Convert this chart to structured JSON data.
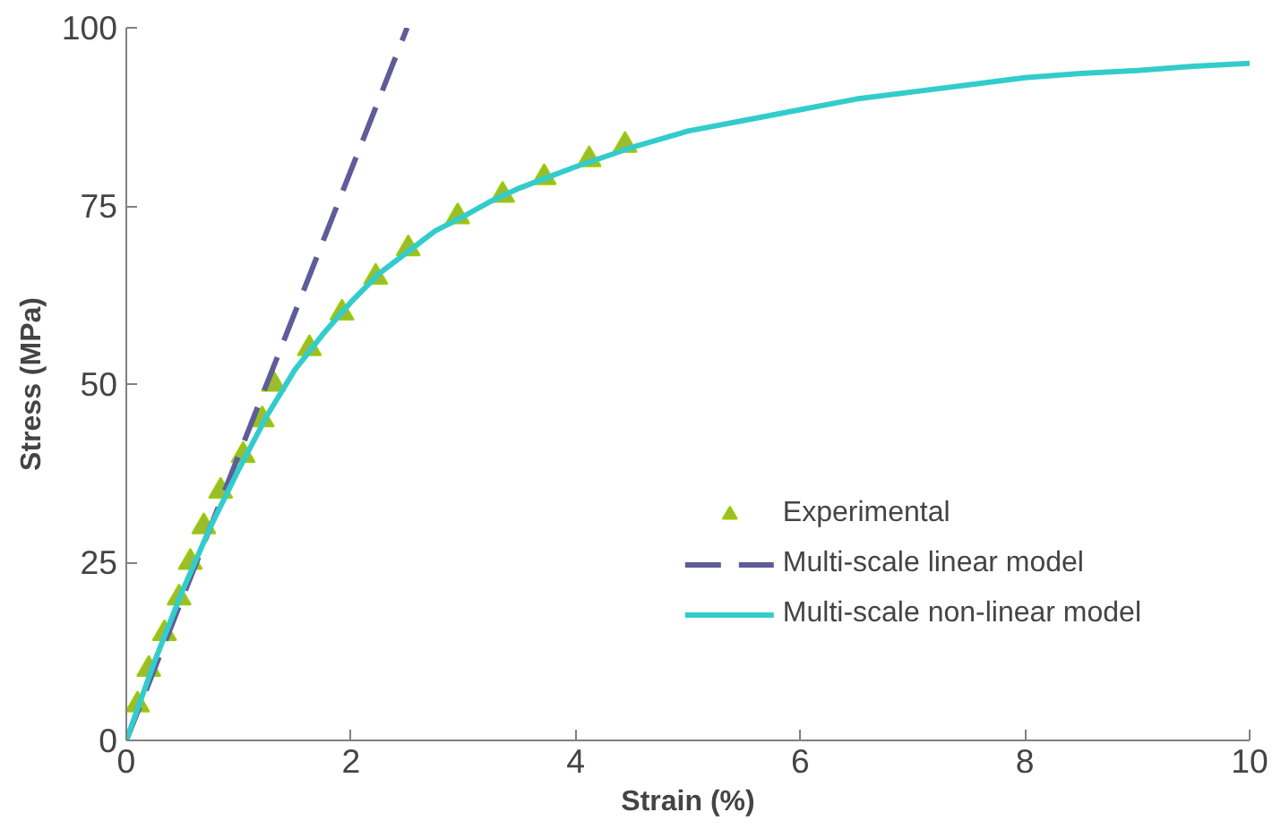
{
  "chart_data": {
    "type": "line",
    "xlabel": "Strain (%)",
    "ylabel": "Stress (MPa)",
    "xlim": [
      0,
      10
    ],
    "ylim": [
      0,
      100
    ],
    "xticks": [
      0,
      2,
      4,
      6,
      8,
      10
    ],
    "yticks": [
      0,
      25,
      50,
      75,
      100
    ],
    "grid": false,
    "legend": "bottom right",
    "series": [
      {
        "name": "Experimental",
        "type": "scatter",
        "marker": "triangle",
        "color": "#9bbb30",
        "x": [
          0.1,
          0.2,
          0.34,
          0.47,
          0.57,
          0.69,
          0.84,
          1.04,
          1.21,
          1.31,
          1.63,
          1.92,
          2.22,
          2.51,
          2.95,
          3.35,
          3.72,
          4.12,
          4.44
        ],
        "values": [
          5,
          10,
          15,
          20,
          25,
          30,
          35,
          40,
          45,
          50,
          55,
          60,
          65,
          69,
          73.5,
          76.5,
          79,
          81.5,
          83.5
        ]
      },
      {
        "name": "Multi-scale linear model",
        "line_style": "dashed",
        "color": "#605c99",
        "x": [
          0,
          2.5
        ],
        "values": [
          0,
          100
        ]
      },
      {
        "name": "Multi-scale non-linear model",
        "line_style": "solid",
        "color": "#33cccc",
        "x": [
          0,
          0.25,
          0.5,
          0.75,
          1,
          1.25,
          1.5,
          1.75,
          2,
          2.25,
          2.5,
          2.75,
          3,
          3.25,
          3.5,
          3.75,
          4,
          4.5,
          5,
          5.5,
          6,
          6.5,
          7,
          7.5,
          8,
          8.5,
          9,
          9.5,
          10
        ],
        "values": [
          0,
          11,
          21,
          30,
          38,
          45.5,
          52,
          57,
          61.5,
          65.5,
          68.5,
          71.5,
          73.5,
          75.7,
          77.5,
          79,
          80.5,
          83.2,
          85.5,
          87,
          88.5,
          90,
          91,
          92,
          93,
          93.6,
          94,
          94.6,
          95
        ]
      }
    ]
  }
}
